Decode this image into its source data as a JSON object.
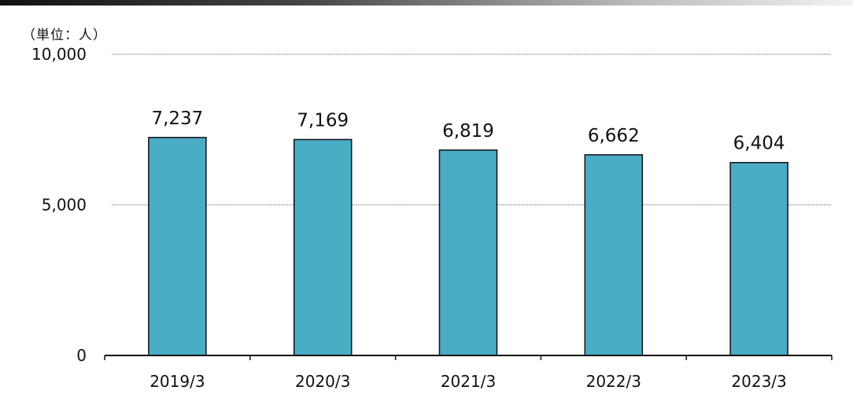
{
  "unit_label": "（単位：人）",
  "colors": {
    "bar": "#4BACC6",
    "bar_stroke": "#111111",
    "grid": "#999999",
    "axis": "#111111"
  },
  "chart_data": {
    "type": "bar",
    "categories": [
      "2019/3",
      "2020/3",
      "2021/3",
      "2022/3",
      "2023/3"
    ],
    "values": [
      7237,
      7169,
      6819,
      6662,
      6404
    ],
    "value_labels": [
      "7,237",
      "7,169",
      "6,819",
      "6,662",
      "6,404"
    ],
    "ylim": [
      0,
      10000
    ],
    "yticks": [
      0,
      5000,
      10000
    ],
    "ytick_labels": [
      "0",
      "5,000",
      "10,000"
    ],
    "grid": true
  }
}
